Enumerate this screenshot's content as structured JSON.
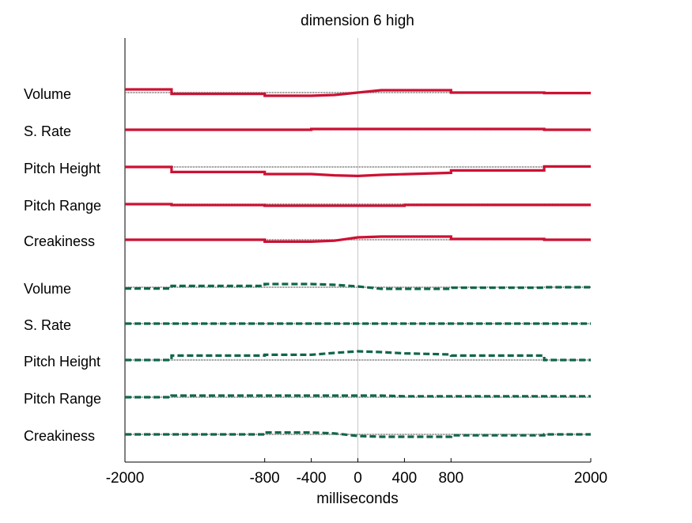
{
  "chart_data": {
    "type": "line",
    "title": "dimension  6 high",
    "xlabel": "milliseconds",
    "ylabel": "",
    "xlim": [
      -2000,
      2000
    ],
    "xticks": [
      -2000,
      -800,
      -400,
      0,
      400,
      800,
      2000
    ],
    "grid": false,
    "legend": "none",
    "rows": [
      "Volume",
      "S. Rate",
      "Pitch Height",
      "Pitch Range",
      "Creakiness",
      "Volume",
      "S. Rate",
      "Pitch Height",
      "Pitch Range",
      "Creakiness"
    ],
    "series": [
      {
        "color": "#cc1133",
        "dash": "solid",
        "rows": [
          {
            "x": [
              -2000,
              -1600,
              -1600,
              -800,
              -800,
              -400,
              -200,
              0,
              200,
              800,
              800,
              1600,
              1600,
              2000
            ],
            "y": [
              2,
              2,
              -0.8,
              -0.8,
              -2,
              -2,
              -1.5,
              0,
              1.5,
              1.5,
              0,
              0,
              -0.3,
              -0.3
            ]
          },
          {
            "x": [
              -2000,
              -400,
              -400,
              1600,
              1600,
              2000
            ],
            "y": [
              0,
              0,
              0.5,
              0.5,
              0,
              0
            ]
          },
          {
            "x": [
              -2000,
              -1600,
              -1600,
              -800,
              -800,
              -400,
              -200,
              0,
              200,
              800,
              800,
              1600,
              1600,
              2000
            ],
            "y": [
              0,
              0,
              -3.2,
              -3.2,
              -4.5,
              -4.5,
              -5.3,
              -5.7,
              -5,
              -3.7,
              -2.2,
              -2.2,
              0.3,
              0.3
            ]
          },
          {
            "x": [
              -2000,
              -1600,
              -1600,
              -800,
              -800,
              400,
              400,
              2000
            ],
            "y": [
              0,
              0,
              -0.6,
              -0.6,
              -1,
              -1,
              -0.5,
              -0.5
            ]
          },
          {
            "x": [
              -2000,
              -800,
              -800,
              -400,
              -200,
              0,
              200,
              800,
              800,
              1600,
              1600,
              2000
            ],
            "y": [
              0,
              0,
              -1.2,
              -1.2,
              -0.6,
              1.5,
              2,
              2,
              0.5,
              0.5,
              0,
              0
            ]
          }
        ]
      },
      {
        "color": "#11664a",
        "dash": "dashed",
        "rows": [
          {
            "x": [
              -2000,
              -1600,
              -1600,
              -800,
              -800,
              -400,
              -200,
              0,
              200,
              800,
              800,
              1600,
              1600,
              2000
            ],
            "y": [
              -0.8,
              -0.8,
              0.8,
              0.8,
              2,
              2,
              1.5,
              0.5,
              -1,
              -1,
              -0.3,
              -0.3,
              0,
              0
            ]
          },
          {
            "x": [
              -2000,
              2000
            ],
            "y": [
              0,
              0
            ]
          },
          {
            "x": [
              -2000,
              -1600,
              -1600,
              -800,
              -800,
              -400,
              -200,
              0,
              200,
              400,
              800,
              800,
              1600,
              1600,
              2000
            ],
            "y": [
              0,
              0,
              2.8,
              2.8,
              3.3,
              3.3,
              4.5,
              5.5,
              5,
              4.2,
              3.5,
              2.8,
              2.8,
              0,
              0
            ]
          },
          {
            "x": [
              -2000,
              -1600,
              -1600,
              200,
              400,
              2000
            ],
            "y": [
              0,
              0,
              1,
              1,
              0.6,
              0.6
            ]
          },
          {
            "x": [
              -2000,
              -800,
              -800,
              -400,
              -200,
              0,
              200,
              800,
              800,
              1600,
              1600,
              2000
            ],
            "y": [
              0,
              0,
              1.2,
              1.2,
              0.6,
              -1,
              -1.5,
              -1.5,
              -0.6,
              -0.6,
              0,
              0
            ]
          }
        ]
      }
    ]
  }
}
